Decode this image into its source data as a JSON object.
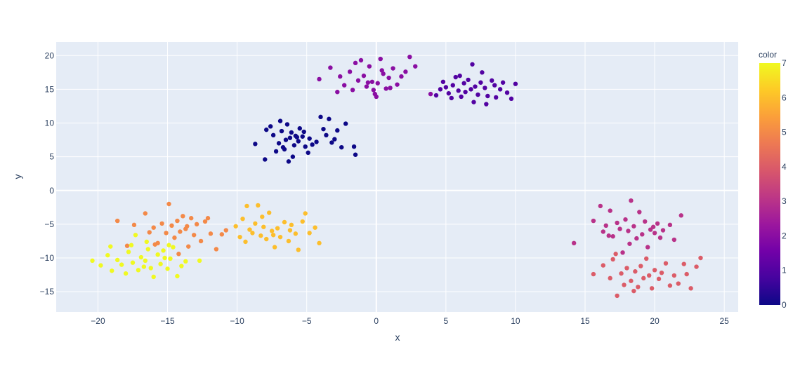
{
  "chart_data": {
    "type": "scatter",
    "xlabel": "x",
    "ylabel": "y",
    "xlim": [
      -23,
      26
    ],
    "ylim": [
      -18,
      22
    ],
    "x_ticks": [
      -20,
      -15,
      -10,
      -5,
      0,
      5,
      10,
      15,
      20,
      25
    ],
    "y_ticks": [
      -15,
      -10,
      -5,
      0,
      5,
      10,
      15,
      20
    ],
    "tick_labels_x": [
      "−20",
      "−15",
      "−10",
      "−5",
      "0",
      "5",
      "10",
      "15",
      "20",
      "25"
    ],
    "tick_labels_y": [
      "−15",
      "−10",
      "−5",
      "0",
      "5",
      "10",
      "15",
      "20"
    ],
    "grid": true,
    "plot_background": "#e5ecf6",
    "colorbar": {
      "title": "color",
      "min": 0,
      "max": 7,
      "ticks": [
        0,
        1,
        2,
        3,
        4,
        5,
        6,
        7
      ],
      "tick_labels": [
        "0",
        "1",
        "2",
        "3",
        "4",
        "5",
        "6",
        "7"
      ],
      "colorscale": [
        "#0d0887",
        "#46039f",
        "#7201a8",
        "#9c179e",
        "#bd3786",
        "#d8576b",
        "#ed7953",
        "#fb9f3a",
        "#fdca26",
        "#f0f921"
      ]
    },
    "series": [
      {
        "color_value": 0,
        "points": [
          [
            -8.7,
            6.9
          ],
          [
            -8.0,
            4.6
          ],
          [
            -7.6,
            9.5
          ],
          [
            -7.2,
            5.8
          ],
          [
            -7.0,
            7.0
          ],
          [
            -6.9,
            10.3
          ],
          [
            -6.8,
            8.8
          ],
          [
            -6.6,
            6.1
          ],
          [
            -6.5,
            7.5
          ],
          [
            -6.4,
            9.8
          ],
          [
            -6.2,
            7.8
          ],
          [
            -6.1,
            8.6
          ],
          [
            -6.0,
            5.0
          ],
          [
            -5.9,
            6.7
          ],
          [
            -5.8,
            8.1
          ],
          [
            -5.6,
            7.3
          ],
          [
            -5.5,
            9.2
          ],
          [
            -5.3,
            8.0
          ],
          [
            -5.1,
            6.5
          ],
          [
            -4.8,
            7.7
          ],
          [
            -4.6,
            6.8
          ],
          [
            -4.3,
            7.2
          ],
          [
            -4.0,
            10.9
          ],
          [
            -3.8,
            9.1
          ],
          [
            -3.6,
            8.2
          ],
          [
            -3.4,
            10.6
          ],
          [
            -3.0,
            7.6
          ],
          [
            -2.5,
            6.4
          ],
          [
            -2.2,
            9.9
          ],
          [
            -1.6,
            6.5
          ],
          [
            -1.5,
            5.3
          ],
          [
            -7.9,
            9.0
          ],
          [
            -6.3,
            4.3
          ],
          [
            -7.4,
            8.2
          ],
          [
            -5.7,
            7.9
          ],
          [
            -4.9,
            5.6
          ],
          [
            -6.7,
            6.4
          ],
          [
            -5.2,
            8.7
          ],
          [
            -3.2,
            7.1
          ],
          [
            -2.8,
            8.9
          ]
        ]
      },
      {
        "color_value": 1,
        "points": [
          [
            4.3,
            14.1
          ],
          [
            4.8,
            16.1
          ],
          [
            5.0,
            15.3
          ],
          [
            5.2,
            14.4
          ],
          [
            5.5,
            15.6
          ],
          [
            5.7,
            16.8
          ],
          [
            5.9,
            14.8
          ],
          [
            6.1,
            13.9
          ],
          [
            6.3,
            15.9
          ],
          [
            6.4,
            14.6
          ],
          [
            6.6,
            16.4
          ],
          [
            6.8,
            15.0
          ],
          [
            7.0,
            13.1
          ],
          [
            7.1,
            15.4
          ],
          [
            7.3,
            14.2
          ],
          [
            7.5,
            16.0
          ],
          [
            7.6,
            17.5
          ],
          [
            7.8,
            15.2
          ],
          [
            8.0,
            14.0
          ],
          [
            8.3,
            16.3
          ],
          [
            8.6,
            13.8
          ],
          [
            8.9,
            15.0
          ],
          [
            9.1,
            16.0
          ],
          [
            9.4,
            14.5
          ],
          [
            9.7,
            13.6
          ],
          [
            10.0,
            15.8
          ],
          [
            4.6,
            15.0
          ],
          [
            5.4,
            13.7
          ],
          [
            6.9,
            18.7
          ],
          [
            7.9,
            12.8
          ],
          [
            6.0,
            17.0
          ],
          [
            8.5,
            15.6
          ]
        ]
      },
      {
        "color_value": 2,
        "points": [
          [
            -4.1,
            16.5
          ],
          [
            -3.3,
            18.2
          ],
          [
            -2.6,
            16.9
          ],
          [
            -2.3,
            15.6
          ],
          [
            -1.9,
            17.6
          ],
          [
            -1.7,
            14.9
          ],
          [
            -1.3,
            16.3
          ],
          [
            -1.1,
            19.3
          ],
          [
            -0.9,
            17.0
          ],
          [
            -0.7,
            15.4
          ],
          [
            -0.5,
            18.4
          ],
          [
            -0.3,
            16.1
          ],
          [
            -0.1,
            14.3
          ],
          [
            0.1,
            15.9
          ],
          [
            0.3,
            19.5
          ],
          [
            0.5,
            17.3
          ],
          [
            0.7,
            15.1
          ],
          [
            0.9,
            16.7
          ],
          [
            1.2,
            18.1
          ],
          [
            1.5,
            15.7
          ],
          [
            1.8,
            16.9
          ],
          [
            2.1,
            17.6
          ],
          [
            2.4,
            19.8
          ],
          [
            2.8,
            18.4
          ],
          [
            3.9,
            14.3
          ],
          [
            0.0,
            13.9
          ],
          [
            -0.6,
            16.0
          ],
          [
            1.0,
            15.2
          ],
          [
            -1.5,
            18.9
          ],
          [
            -2.8,
            14.6
          ],
          [
            0.4,
            17.8
          ],
          [
            -0.2,
            14.9
          ]
        ]
      },
      {
        "color_value": 3,
        "points": [
          [
            14.2,
            -7.8
          ],
          [
            15.6,
            -4.5
          ],
          [
            16.1,
            -2.3
          ],
          [
            16.3,
            -6.1
          ],
          [
            16.5,
            -5.2
          ],
          [
            16.8,
            -3.0
          ],
          [
            17.0,
            -6.8
          ],
          [
            17.3,
            -4.8
          ],
          [
            17.5,
            -5.7
          ],
          [
            17.7,
            -9.2
          ],
          [
            17.9,
            -4.3
          ],
          [
            18.1,
            -6.0
          ],
          [
            18.3,
            -1.5
          ],
          [
            18.5,
            -5.3
          ],
          [
            18.7,
            -7.1
          ],
          [
            18.9,
            -3.2
          ],
          [
            19.1,
            -6.5
          ],
          [
            19.3,
            -4.6
          ],
          [
            19.5,
            -8.4
          ],
          [
            19.7,
            -5.8
          ],
          [
            20.0,
            -6.3
          ],
          [
            20.2,
            -4.9
          ],
          [
            20.4,
            -7.0
          ],
          [
            20.6,
            -5.9
          ],
          [
            21.1,
            -5.1
          ],
          [
            21.4,
            -7.3
          ],
          [
            21.9,
            -3.7
          ],
          [
            16.7,
            -6.7
          ],
          [
            18.2,
            -7.9
          ],
          [
            19.9,
            -5.4
          ]
        ]
      },
      {
        "color_value": 4,
        "points": [
          [
            15.6,
            -12.4
          ],
          [
            16.3,
            -11.1
          ],
          [
            16.8,
            -13.0
          ],
          [
            17.0,
            -10.2
          ],
          [
            17.3,
            -15.6
          ],
          [
            17.6,
            -12.3
          ],
          [
            17.8,
            -14.0
          ],
          [
            18.0,
            -11.5
          ],
          [
            18.3,
            -13.4
          ],
          [
            18.6,
            -12.0
          ],
          [
            18.8,
            -14.3
          ],
          [
            19.0,
            -11.2
          ],
          [
            19.2,
            -13.0
          ],
          [
            19.4,
            -10.1
          ],
          [
            19.6,
            -12.6
          ],
          [
            19.8,
            -14.5
          ],
          [
            20.0,
            -11.8
          ],
          [
            20.3,
            -13.1
          ],
          [
            20.5,
            -12.2
          ],
          [
            20.8,
            -10.8
          ],
          [
            21.1,
            -14.1
          ],
          [
            21.4,
            -12.6
          ],
          [
            21.7,
            -13.8
          ],
          [
            22.1,
            -10.9
          ],
          [
            22.3,
            -12.4
          ],
          [
            22.6,
            -14.5
          ],
          [
            23.0,
            -11.3
          ],
          [
            23.3,
            -10.0
          ],
          [
            17.2,
            -9.4
          ],
          [
            18.5,
            -14.9
          ]
        ]
      },
      {
        "color_value": 5,
        "points": [
          [
            -18.6,
            -4.5
          ],
          [
            -17.9,
            -8.2
          ],
          [
            -17.4,
            -5.1
          ],
          [
            -16.6,
            -3.4
          ],
          [
            -16.3,
            -6.2
          ],
          [
            -16.0,
            -5.5
          ],
          [
            -15.7,
            -7.8
          ],
          [
            -15.4,
            -4.9
          ],
          [
            -15.1,
            -6.3
          ],
          [
            -14.9,
            -2.0
          ],
          [
            -14.7,
            -5.2
          ],
          [
            -14.5,
            -7.0
          ],
          [
            -14.3,
            -4.5
          ],
          [
            -14.1,
            -6.1
          ],
          [
            -13.9,
            -3.8
          ],
          [
            -13.7,
            -5.7
          ],
          [
            -13.5,
            -8.3
          ],
          [
            -13.3,
            -4.1
          ],
          [
            -13.1,
            -6.6
          ],
          [
            -12.9,
            -5.0
          ],
          [
            -12.6,
            -7.5
          ],
          [
            -12.3,
            -4.6
          ],
          [
            -11.9,
            -6.4
          ],
          [
            -11.5,
            -8.7
          ],
          [
            -11.1,
            -6.5
          ],
          [
            -10.8,
            -5.9
          ],
          [
            -15.9,
            -8.0
          ],
          [
            -14.2,
            -9.4
          ],
          [
            -13.6,
            -5.3
          ],
          [
            -12.1,
            -4.1
          ]
        ]
      },
      {
        "color_value": 6,
        "points": [
          [
            -10.1,
            -5.3
          ],
          [
            -9.8,
            -6.9
          ],
          [
            -9.6,
            -4.2
          ],
          [
            -9.4,
            -7.6
          ],
          [
            -9.1,
            -5.8
          ],
          [
            -8.9,
            -6.3
          ],
          [
            -8.7,
            -4.9
          ],
          [
            -8.5,
            -2.2
          ],
          [
            -8.3,
            -6.7
          ],
          [
            -8.1,
            -5.4
          ],
          [
            -7.9,
            -7.2
          ],
          [
            -7.7,
            -3.3
          ],
          [
            -7.5,
            -6.0
          ],
          [
            -7.3,
            -8.4
          ],
          [
            -7.1,
            -5.6
          ],
          [
            -6.9,
            -6.9
          ],
          [
            -6.6,
            -4.7
          ],
          [
            -6.3,
            -7.5
          ],
          [
            -6.1,
            -5.1
          ],
          [
            -5.8,
            -6.4
          ],
          [
            -5.6,
            -8.8
          ],
          [
            -5.3,
            -4.6
          ],
          [
            -5.1,
            -3.4
          ],
          [
            -4.8,
            -6.3
          ],
          [
            -4.4,
            -5.5
          ],
          [
            -4.1,
            -7.8
          ],
          [
            -9.3,
            -2.3
          ],
          [
            -8.2,
            -3.9
          ],
          [
            -7.4,
            -6.6
          ],
          [
            -6.2,
            -5.9
          ]
        ]
      },
      {
        "color_value": 7,
        "points": [
          [
            -20.4,
            -10.4
          ],
          [
            -19.8,
            -11.1
          ],
          [
            -19.3,
            -9.6
          ],
          [
            -19.0,
            -11.9
          ],
          [
            -18.6,
            -10.3
          ],
          [
            -18.3,
            -11.0
          ],
          [
            -18.0,
            -12.3
          ],
          [
            -17.8,
            -9.1
          ],
          [
            -17.5,
            -10.7
          ],
          [
            -17.3,
            -6.6
          ],
          [
            -17.1,
            -11.8
          ],
          [
            -16.9,
            -9.9
          ],
          [
            -16.6,
            -10.4
          ],
          [
            -16.4,
            -8.7
          ],
          [
            -16.2,
            -11.5
          ],
          [
            -16.0,
            -12.8
          ],
          [
            -15.7,
            -9.5
          ],
          [
            -15.5,
            -10.9
          ],
          [
            -15.3,
            -8.9
          ],
          [
            -15.0,
            -11.6
          ],
          [
            -14.8,
            -10.1
          ],
          [
            -14.6,
            -8.4
          ],
          [
            -14.3,
            -12.7
          ],
          [
            -14.0,
            -11.2
          ],
          [
            -13.7,
            -10.5
          ],
          [
            -12.7,
            -10.4
          ],
          [
            -19.1,
            -8.3
          ],
          [
            -17.6,
            -8.1
          ],
          [
            -16.7,
            -11.3
          ],
          [
            -15.2,
            -10.0
          ],
          [
            -14.9,
            -8.1
          ],
          [
            -16.5,
            -7.6
          ]
        ]
      }
    ]
  }
}
